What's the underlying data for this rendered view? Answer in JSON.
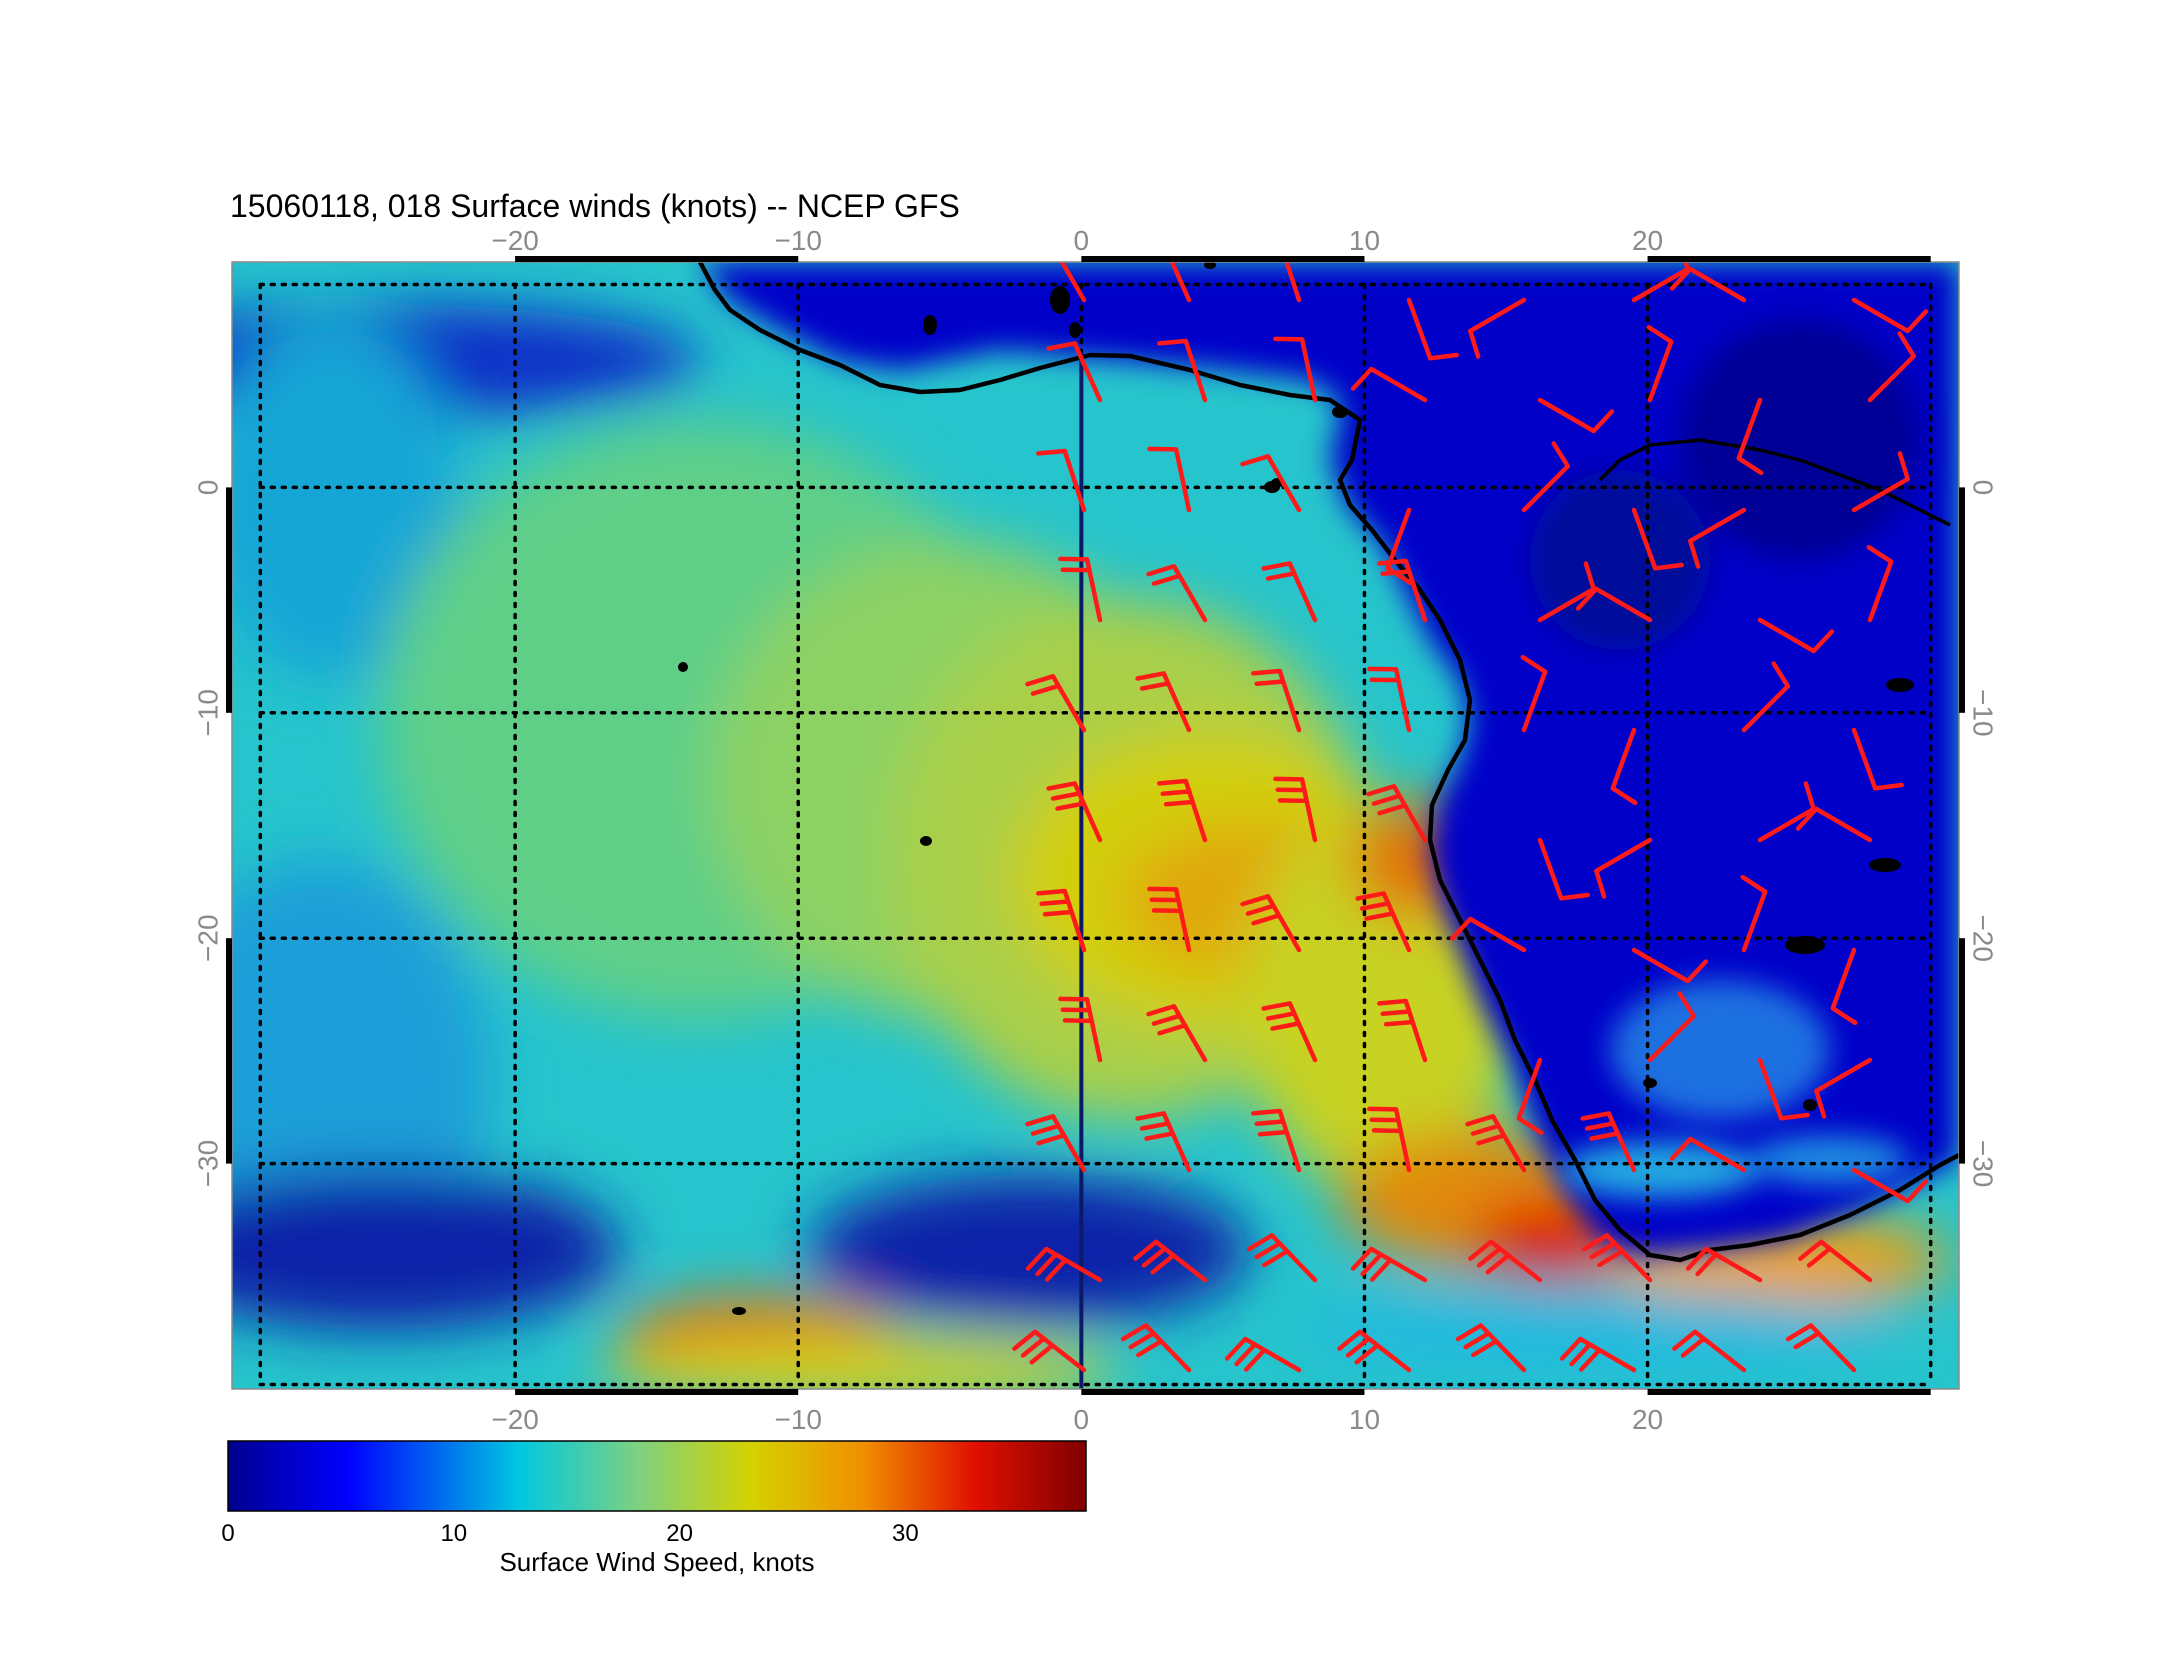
{
  "map": {
    "title": "15060118, 018 Surface winds (knots) -- NCEP GFS",
    "projection": "cylindrical equidistant",
    "extent": {
      "lon": [
        -30,
        31
      ],
      "lat": [
        -40,
        10
      ]
    },
    "lon_ticks": [
      -20,
      -10,
      0,
      10,
      20
    ],
    "lat_ticks": [
      0,
      -10,
      -20,
      -30
    ],
    "lon_tick_labels": [
      "−20",
      "−10",
      "0",
      "10",
      "20"
    ],
    "lat_tick_labels": [
      "0",
      "−10",
      "−20",
      "−30"
    ],
    "graticule": "dotted",
    "vector_layer": "red wind barbs, east of 0°",
    "colors": {
      "barbs": "#ff1a1a",
      "coast": "#000000",
      "graticule": "#000000",
      "meridian0": "#0b1a66"
    }
  },
  "colorbar": {
    "label": "Surface Wind Speed, knots",
    "ticks": [
      0,
      10,
      20,
      30
    ],
    "tick_labels": [
      "0",
      "10",
      "20",
      "30"
    ],
    "range": [
      0,
      38
    ],
    "colormap": [
      "#00008f",
      "#0000ff",
      "#00c8e0",
      "#7fd17f",
      "#d4d200",
      "#f09000",
      "#e01000",
      "#800000"
    ]
  }
}
